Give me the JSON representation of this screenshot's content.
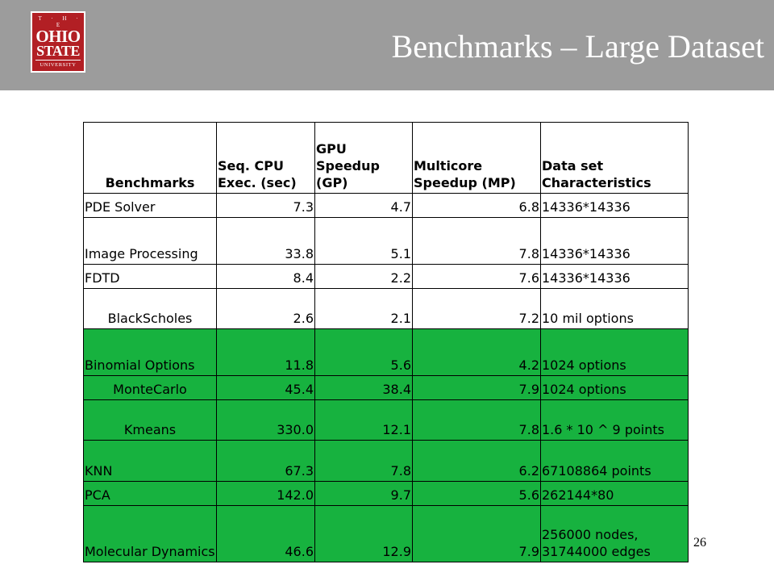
{
  "slide": {
    "title": "Benchmarks – Large Dataset",
    "page_number": "26"
  },
  "logo": {
    "line1": "T · H · E",
    "line2": "OHIO",
    "line3": "STATE",
    "line4": "UNIVERSITY",
    "color": "#b21f24"
  },
  "table": {
    "headers": [
      "Benchmarks",
      "Seq. CPU Exec. (sec)",
      "GPU Speedup (GP)",
      "Multicore Speedup (MP)",
      "Data set Characteristics"
    ],
    "rows": [
      {
        "name": "PDE Solver",
        "cpu": "7.3",
        "gpu": "4.7",
        "mc": "6.8",
        "chars": "14336*14336",
        "highlight": false
      },
      {
        "name": "Image Processing",
        "cpu": "33.8",
        "gpu": "5.1",
        "mc": "7.8",
        "chars": "14336*14336",
        "highlight": false
      },
      {
        "name": "FDTD",
        "cpu": "8.4",
        "gpu": "2.2",
        "mc": "7.6",
        "chars": "14336*14336",
        "highlight": false
      },
      {
        "name": "BlackScholes",
        "cpu": "2.6",
        "gpu": "2.1",
        "mc": "7.2",
        "chars": "10 mil options",
        "highlight": false
      },
      {
        "name": "Binomial Options",
        "cpu": "11.8",
        "gpu": "5.6",
        "mc": "4.2",
        "chars": "1024 options",
        "highlight": true
      },
      {
        "name": "MonteCarlo",
        "cpu": "45.4",
        "gpu": "38.4",
        "mc": "7.9",
        "chars": "1024 options",
        "highlight": true
      },
      {
        "name": "Kmeans",
        "cpu": "330.0",
        "gpu": "12.1",
        "mc": "7.8",
        "chars": "1.6 * 10 ^ 9 points",
        "highlight": true
      },
      {
        "name": "KNN",
        "cpu": "67.3",
        "gpu": "7.8",
        "mc": "6.2",
        "chars": "67108864 points",
        "highlight": true
      },
      {
        "name": "PCA",
        "cpu": "142.0",
        "gpu": "9.7",
        "mc": "5.6",
        "chars": "262144*80",
        "highlight": true
      },
      {
        "name": "Molecular Dynamics",
        "cpu": "46.6",
        "gpu": "12.9",
        "mc": "7.9",
        "chars": "256000 nodes, 31744000 edges",
        "highlight": true
      }
    ],
    "highlight_color": "#17b23f"
  }
}
